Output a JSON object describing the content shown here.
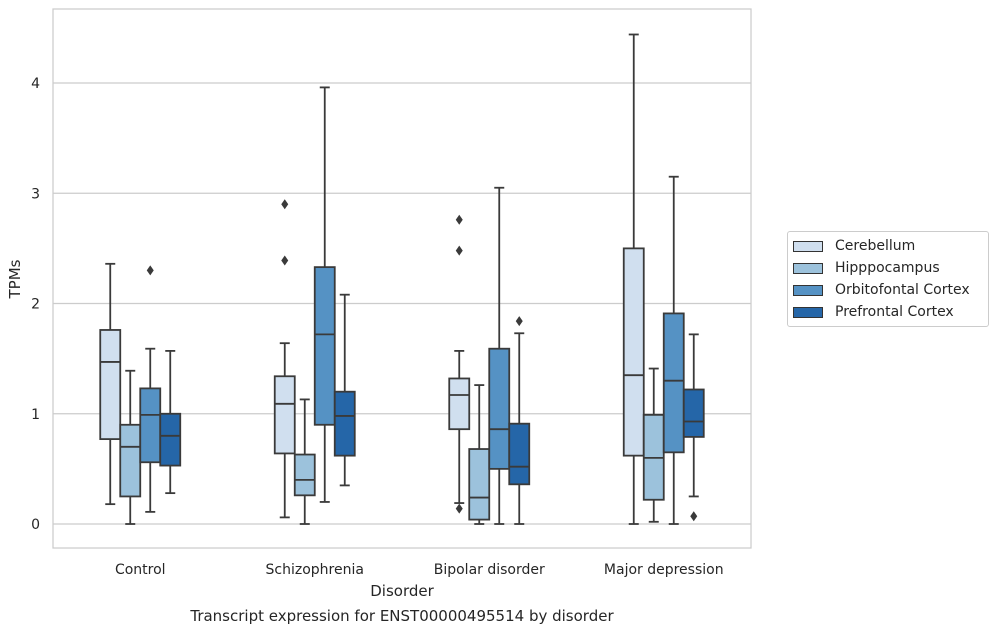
{
  "chart_data": {
    "type": "boxplot",
    "title": "Transcript expression for ENST00000495514 by disorder",
    "xlabel": "Disorder",
    "ylabel": "TPMs",
    "ylim": [
      -0.2,
      4.65
    ],
    "yticks": [
      0,
      1,
      2,
      3,
      4
    ],
    "grid": "horizontal",
    "legend_position": "right",
    "categories": [
      "Control",
      "Schizophrenia",
      "Bipolar disorder",
      "Major depression"
    ],
    "series": [
      {
        "name": "Cerebellum",
        "color": "#d0dfef",
        "boxes": [
          {
            "whislo": 0.18,
            "q1": 0.77,
            "med": 1.47,
            "q3": 1.76,
            "whishi": 2.36,
            "fliers": []
          },
          {
            "whislo": 0.06,
            "q1": 0.64,
            "med": 1.09,
            "q3": 1.34,
            "whishi": 1.64,
            "fliers": [
              2.39,
              2.9
            ]
          },
          {
            "whislo": 0.19,
            "q1": 0.86,
            "med": 1.17,
            "q3": 1.32,
            "whishi": 1.57,
            "fliers": [
              0.14,
              2.48,
              2.76
            ]
          },
          {
            "whislo": 0.0,
            "q1": 0.62,
            "med": 1.35,
            "q3": 2.5,
            "whishi": 4.44,
            "fliers": []
          }
        ]
      },
      {
        "name": "Hipppocampus",
        "color": "#9cc2dc",
        "boxes": [
          {
            "whislo": 0.0,
            "q1": 0.25,
            "med": 0.7,
            "q3": 0.9,
            "whishi": 1.39,
            "fliers": []
          },
          {
            "whislo": 0.0,
            "q1": 0.26,
            "med": 0.4,
            "q3": 0.63,
            "whishi": 1.13,
            "fliers": []
          },
          {
            "whislo": 0.0,
            "q1": 0.04,
            "med": 0.24,
            "q3": 0.68,
            "whishi": 1.26,
            "fliers": []
          },
          {
            "whislo": 0.02,
            "q1": 0.22,
            "med": 0.6,
            "q3": 0.99,
            "whishi": 1.41,
            "fliers": []
          }
        ]
      },
      {
        "name": "Orbitofontal Cortex",
        "color": "#5592c4",
        "boxes": [
          {
            "whislo": 0.11,
            "q1": 0.56,
            "med": 0.99,
            "q3": 1.23,
            "whishi": 1.59,
            "fliers": [
              2.3
            ]
          },
          {
            "whislo": 0.2,
            "q1": 0.9,
            "med": 1.72,
            "q3": 2.33,
            "whishi": 3.96,
            "fliers": []
          },
          {
            "whislo": 0.0,
            "q1": 0.5,
            "med": 0.86,
            "q3": 1.59,
            "whishi": 3.05,
            "fliers": []
          },
          {
            "whislo": 0.0,
            "q1": 0.65,
            "med": 1.3,
            "q3": 1.91,
            "whishi": 3.15,
            "fliers": []
          }
        ]
      },
      {
        "name": "Prefrontal Cortex",
        "color": "#2566a8",
        "boxes": [
          {
            "whislo": 0.28,
            "q1": 0.53,
            "med": 0.8,
            "q3": 1.0,
            "whishi": 1.57,
            "fliers": []
          },
          {
            "whislo": 0.35,
            "q1": 0.62,
            "med": 0.98,
            "q3": 1.2,
            "whishi": 2.08,
            "fliers": []
          },
          {
            "whislo": 0.0,
            "q1": 0.36,
            "med": 0.52,
            "q3": 0.91,
            "whishi": 1.73,
            "fliers": [
              1.84
            ]
          },
          {
            "whislo": 0.25,
            "q1": 0.79,
            "med": 0.93,
            "q3": 1.22,
            "whishi": 1.72,
            "fliers": [
              0.07
            ]
          }
        ]
      }
    ]
  }
}
